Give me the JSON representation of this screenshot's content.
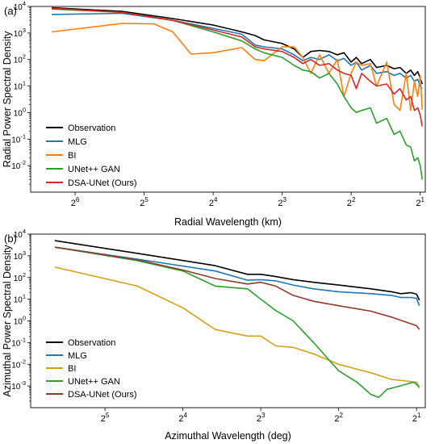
{
  "chart_data": [
    {
      "type": "line",
      "panel_label": "(a)",
      "xlabel": "Radial Wavelength (km)",
      "ylabel": "Radial Power Spectral Density",
      "x_scale": "log2",
      "y_scale": "log10",
      "x_inverted": true,
      "xlim": [
        100,
        1.9
      ],
      "ylim": [
        0.001,
        10000
      ],
      "x_ticks": [
        {
          "value": 64,
          "base": "2",
          "exp": "6"
        },
        {
          "value": 32,
          "base": "2",
          "exp": "5"
        },
        {
          "value": 16,
          "base": "2",
          "exp": "4"
        },
        {
          "value": 8,
          "base": "2",
          "exp": "3"
        },
        {
          "value": 4,
          "base": "2",
          "exp": "2"
        },
        {
          "value": 2,
          "base": "2",
          "exp": "1"
        }
      ],
      "y_ticks": [
        {
          "value": 0.01,
          "base": "10",
          "exp": "-2"
        },
        {
          "value": 0.1,
          "base": "10",
          "exp": "-1"
        },
        {
          "value": 1,
          "base": "10",
          "exp": "0"
        },
        {
          "value": 10,
          "base": "10",
          "exp": "1"
        },
        {
          "value": 100,
          "base": "10",
          "exp": "2"
        },
        {
          "value": 1000,
          "base": "10",
          "exp": "3"
        },
        {
          "value": 10000,
          "base": "10",
          "exp": "4"
        }
      ],
      "legend_position": "lower-left",
      "series": [
        {
          "name": "Observation",
          "color": "#000000",
          "x": [
            81,
            40,
            24,
            16,
            12,
            10.5,
            9.6,
            8,
            7.1,
            6.5,
            6,
            5.5,
            5,
            4.6,
            4.3,
            4.0,
            3.8,
            3.6,
            3.3,
            3.1,
            2.8,
            2.6,
            2.45,
            2.3,
            2.2,
            2.12,
            2.05,
            2.0,
            1.96
          ],
          "y": [
            9000,
            6500,
            3500,
            2000,
            1100,
            800,
            550,
            400,
            250,
            120,
            200,
            220,
            200,
            150,
            180,
            80,
            120,
            70,
            100,
            50,
            60,
            45,
            50,
            30,
            40,
            25,
            35,
            20,
            12
          ]
        },
        {
          "name": "MLG",
          "color": "#1f77b4",
          "x": [
            81,
            40,
            24,
            16,
            12,
            10.5,
            9.6,
            8,
            7.1,
            6.5,
            6,
            5.5,
            5,
            4.6,
            4.3,
            4.0,
            3.8,
            3.6,
            3.3,
            3.1,
            2.8,
            2.6,
            2.45,
            2.3,
            2.2,
            2.12,
            2.05,
            2.0,
            1.96
          ],
          "y": [
            5000,
            5500,
            3000,
            1500,
            900,
            350,
            300,
            250,
            150,
            90,
            120,
            100,
            150,
            90,
            110,
            60,
            80,
            40,
            60,
            30,
            35,
            25,
            30,
            20,
            25,
            15,
            18,
            10,
            8
          ]
        },
        {
          "name": "BI",
          "color": "#ff7f0e",
          "x": [
            81,
            40,
            29,
            24,
            20,
            16,
            12,
            10.5,
            9.6,
            8,
            7.1,
            6.5,
            6,
            5.5,
            5,
            4.6,
            4.3,
            4.0,
            3.8,
            3.6,
            3.3,
            3.1,
            2.8,
            2.6,
            2.45,
            2.3,
            2.2,
            2.12,
            2.05,
            2.0,
            1.96
          ],
          "y": [
            1100,
            2300,
            2200,
            1100,
            160,
            180,
            280,
            100,
            90,
            300,
            300,
            120,
            30,
            150,
            30,
            100,
            4,
            30,
            80,
            60,
            70,
            10,
            80,
            2,
            1.2,
            30,
            1.2,
            15,
            4,
            25,
            1.3
          ]
        },
        {
          "name": "UNet++ GAN",
          "color": "#2ca02c",
          "x": [
            81,
            40,
            24,
            16,
            12,
            10.5,
            9.6,
            8,
            7.1,
            6.5,
            6,
            5.5,
            5,
            4.6,
            4.3,
            4.0,
            3.8,
            3.6,
            3.3,
            3.1,
            2.8,
            2.6,
            2.45,
            2.3,
            2.2,
            2.12,
            2.05,
            2.0,
            1.96
          ],
          "y": [
            8000,
            6000,
            3000,
            1100,
            500,
            250,
            180,
            120,
            60,
            40,
            35,
            20,
            30,
            12,
            4,
            1.5,
            1,
            1.2,
            1.5,
            0.4,
            0.6,
            0.15,
            0.2,
            0.06,
            0.05,
            0.015,
            0.02,
            0.01,
            0.003
          ]
        },
        {
          "name": "DSA-UNet (Ours)",
          "color": "#d62728",
          "x": [
            81,
            40,
            24,
            16,
            12,
            10.5,
            9.6,
            8,
            7.1,
            6.5,
            6,
            5.5,
            5,
            4.6,
            4.3,
            4.0,
            3.8,
            3.6,
            3.3,
            3.1,
            2.8,
            2.6,
            2.45,
            2.3,
            2.2,
            2.12,
            2.05,
            2.0,
            1.96
          ],
          "y": [
            8500,
            6000,
            3000,
            1300,
            700,
            300,
            250,
            200,
            120,
            70,
            100,
            60,
            70,
            40,
            30,
            25,
            8,
            30,
            15,
            10,
            12,
            5,
            8,
            3,
            4,
            1.2,
            1.5,
            0.8,
            0.3
          ]
        }
      ]
    },
    {
      "type": "line",
      "panel_label": "(b)",
      "xlabel": "Azimuthal Wavelength (deg)",
      "ylabel": "Azimuthal Power Spectral Density",
      "x_scale": "log2",
      "y_scale": "log10",
      "x_inverted": true,
      "xlim": [
        62,
        1.85
      ],
      "ylim": [
        0.0001,
        10000
      ],
      "x_ticks": [
        {
          "value": 32,
          "base": "2",
          "exp": "5"
        },
        {
          "value": 16,
          "base": "2",
          "exp": "4"
        },
        {
          "value": 8,
          "base": "2",
          "exp": "3"
        },
        {
          "value": 4,
          "base": "2",
          "exp": "2"
        },
        {
          "value": 2,
          "base": "2",
          "exp": "1"
        }
      ],
      "y_ticks": [
        {
          "value": 0.001,
          "base": "10",
          "exp": "-3"
        },
        {
          "value": 0.01,
          "base": "10",
          "exp": "-2"
        },
        {
          "value": 0.1,
          "base": "10",
          "exp": "-1"
        },
        {
          "value": 1,
          "base": "10",
          "exp": "0"
        },
        {
          "value": 10,
          "base": "10",
          "exp": "1"
        },
        {
          "value": 100,
          "base": "10",
          "exp": "2"
        },
        {
          "value": 1000,
          "base": "10",
          "exp": "3"
        },
        {
          "value": 10000,
          "base": "10",
          "exp": "4"
        }
      ],
      "legend_position": "lower-left",
      "series": [
        {
          "name": "Observation",
          "color": "#000000",
          "x": [
            50,
            24,
            12,
            9,
            8,
            7,
            6,
            5,
            4,
            3,
            2.5,
            2.3,
            2.1,
            2.0,
            1.95
          ],
          "y": [
            5000,
            1300,
            350,
            140,
            140,
            110,
            80,
            60,
            45,
            30,
            22,
            18,
            20,
            17,
            9
          ]
        },
        {
          "name": "MLG",
          "color": "#1f77b4",
          "x": [
            50,
            24,
            12,
            9,
            8,
            7,
            6,
            5,
            4,
            3,
            2.5,
            2.3,
            2.1,
            2.0,
            1.95
          ],
          "y": [
            2500,
            700,
            200,
            75,
            80,
            70,
            45,
            30,
            22,
            18,
            15,
            12,
            12,
            11,
            5
          ]
        },
        {
          "name": "BI",
          "color": "#d4a017",
          "x": [
            50,
            24,
            16,
            12,
            9,
            8,
            7,
            6,
            5,
            4,
            3,
            2.5,
            2.0,
            1.95
          ],
          "y": [
            300,
            40,
            4,
            0.4,
            0.2,
            0.2,
            0.07,
            0.06,
            0.03,
            0.01,
            0.004,
            0.002,
            0.0015,
            0.0008
          ]
        },
        {
          "name": "UNet++ GAN",
          "color": "#2ca02c",
          "x": [
            50,
            24,
            16,
            12,
            9,
            8,
            7,
            6,
            5,
            4,
            3.4,
            3.0,
            2.8,
            2.6,
            2.4,
            2.2,
            2.05,
            1.95
          ],
          "y": [
            2500,
            600,
            200,
            40,
            30,
            10,
            3,
            1,
            0.1,
            0.005,
            0.0015,
            0.0004,
            0.0003,
            0.0007,
            0.0009,
            0.0012,
            0.0015,
            0.0009
          ]
        },
        {
          "name": "DSA-UNet (Ours)",
          "color": "#8c3b2c",
          "x": [
            50,
            24,
            16,
            12,
            9,
            8,
            7,
            6,
            5,
            4,
            3,
            2.5,
            2.0,
            1.95
          ],
          "y": [
            2500,
            650,
            220,
            90,
            50,
            60,
            40,
            15,
            8,
            5,
            2.8,
            1.5,
            0.6,
            0.4
          ]
        }
      ]
    }
  ]
}
